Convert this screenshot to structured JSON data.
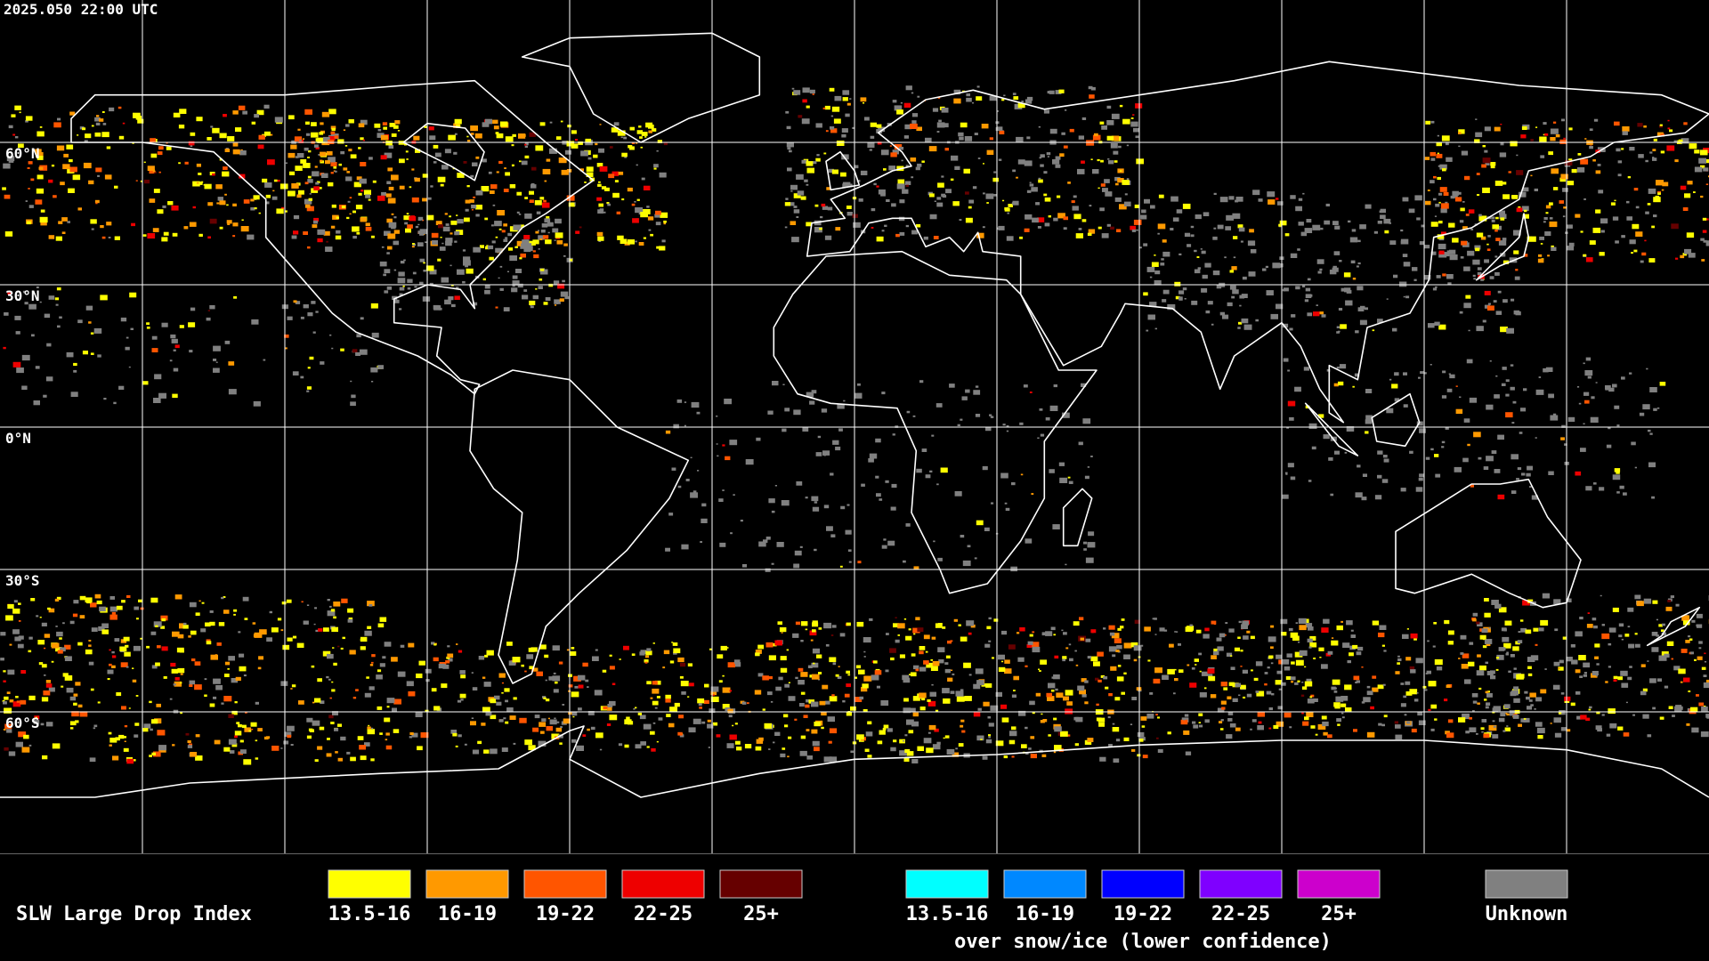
{
  "timestamp": "2025.050 22:00 UTC",
  "latitude_labels": [
    "60°N",
    "30°N",
    "0°N",
    "30°S",
    "60°S"
  ],
  "legend": {
    "title": "SLW Large Drop Index",
    "groups": [
      {
        "items": [
          {
            "label": "13.5-16",
            "color": "#ffff00"
          },
          {
            "label": "16-19",
            "color": "#ff9900"
          },
          {
            "label": "19-22",
            "color": "#ff5500"
          },
          {
            "label": "22-25",
            "color": "#ee0000"
          },
          {
            "label": "25+",
            "color": "#660000"
          }
        ]
      },
      {
        "items": [
          {
            "label": "13.5-16",
            "color": "#00ffff"
          },
          {
            "label": "16-19",
            "color": "#0088ff"
          },
          {
            "label": "19-22",
            "color": "#0000ff"
          },
          {
            "label": "22-25",
            "color": "#7f00ff"
          },
          {
            "label": "25+",
            "color": "#cc00cc"
          }
        ],
        "caption": "over snow/ice (lower confidence)"
      },
      {
        "items": [
          {
            "label": "Unknown",
            "color": "#808080"
          }
        ]
      }
    ]
  }
}
